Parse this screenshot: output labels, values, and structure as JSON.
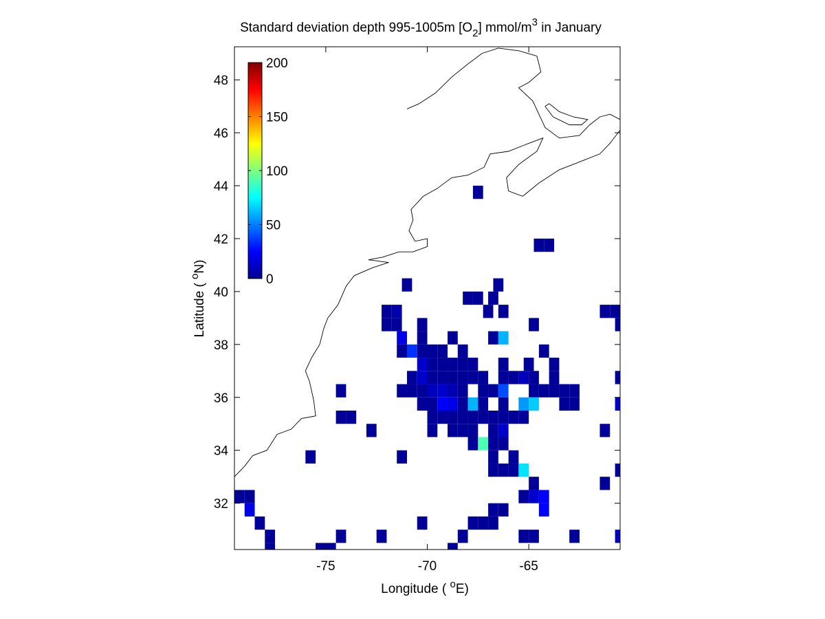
{
  "chart_data": {
    "type": "heatmap",
    "title": {
      "prefix": "Standard deviation depth 995-1005m [O",
      "sub": "2",
      "mid": "] mmol/m",
      "sup": "3",
      "suffix": " in January"
    },
    "xlabel": {
      "prefix": "Longitude ( ",
      "sup": "o",
      "suffix": "E)"
    },
    "ylabel": {
      "prefix": "Latitude ( ",
      "sup": "o",
      "suffix": "N)"
    },
    "xlim": [
      -79.5,
      -60.5
    ],
    "ylim": [
      30.25,
      49.25
    ],
    "xticks": [
      -75,
      -70,
      -65
    ],
    "yticks": [
      32,
      34,
      36,
      38,
      40,
      42,
      44,
      46,
      48
    ],
    "grid": false,
    "colorbar": {
      "min": 0,
      "max": 200,
      "ticks": [
        0,
        50,
        100,
        150,
        200
      ],
      "colormap": "jet",
      "placement": "top-left"
    },
    "cell_size_deg": 0.5,
    "cells": [
      [
        -67.5,
        43.75,
        5
      ],
      [
        -64.5,
        41.75,
        5
      ],
      [
        -64,
        41.75,
        5
      ],
      [
        -71,
        40.25,
        5
      ],
      [
        -66.5,
        40.25,
        5
      ],
      [
        -68,
        39.75,
        5
      ],
      [
        -67.5,
        39.75,
        5
      ],
      [
        -66.75,
        39.75,
        5
      ],
      [
        -72,
        39.25,
        5
      ],
      [
        -71.5,
        39.25,
        8
      ],
      [
        -67,
        39.25,
        5
      ],
      [
        -66.25,
        39.25,
        5
      ],
      [
        -61.25,
        39.25,
        5
      ],
      [
        -60.75,
        39.25,
        5
      ],
      [
        -72,
        38.75,
        5
      ],
      [
        -71.5,
        38.75,
        5
      ],
      [
        -70.25,
        38.75,
        5
      ],
      [
        -64.75,
        38.75,
        5
      ],
      [
        -60.5,
        38.75,
        5
      ],
      [
        -71.25,
        38.25,
        20
      ],
      [
        -70.25,
        38.25,
        5
      ],
      [
        -68.75,
        38.25,
        5
      ],
      [
        -66.75,
        38.25,
        5
      ],
      [
        -66.25,
        38.25,
        60
      ],
      [
        -71.25,
        37.75,
        5
      ],
      [
        -70.75,
        37.75,
        35
      ],
      [
        -70.25,
        37.75,
        5
      ],
      [
        -69.75,
        37.75,
        5
      ],
      [
        -69.25,
        37.75,
        5
      ],
      [
        -68.25,
        37.75,
        5
      ],
      [
        -64.25,
        37.75,
        5
      ],
      [
        -70.25,
        37.25,
        15
      ],
      [
        -69.75,
        37.25,
        5
      ],
      [
        -69.25,
        37.25,
        5
      ],
      [
        -68.75,
        37.25,
        5
      ],
      [
        -68.25,
        37.25,
        5
      ],
      [
        -67.75,
        37.25,
        5
      ],
      [
        -66.25,
        37.25,
        5
      ],
      [
        -65,
        37.25,
        5
      ],
      [
        -63.75,
        37.25,
        5
      ],
      [
        -70.75,
        36.75,
        5
      ],
      [
        -70.25,
        36.75,
        15
      ],
      [
        -69.75,
        36.75,
        5
      ],
      [
        -69.25,
        36.75,
        5
      ],
      [
        -68.75,
        36.75,
        5
      ],
      [
        -68.25,
        36.75,
        5
      ],
      [
        -67.75,
        36.75,
        5
      ],
      [
        -67.25,
        36.75,
        5
      ],
      [
        -66.25,
        36.75,
        5
      ],
      [
        -65.75,
        36.75,
        5
      ],
      [
        -65.25,
        36.75,
        12
      ],
      [
        -64.75,
        36.75,
        5
      ],
      [
        -63.75,
        36.75,
        5
      ],
      [
        -60.5,
        36.75,
        5
      ],
      [
        -74.25,
        36.25,
        5
      ],
      [
        -71.25,
        36.25,
        5
      ],
      [
        -70.75,
        36.25,
        5
      ],
      [
        -70.25,
        36.25,
        5
      ],
      [
        -69.75,
        36.25,
        12
      ],
      [
        -69.25,
        36.25,
        15
      ],
      [
        -68.75,
        36.25,
        10
      ],
      [
        -68.25,
        36.25,
        5
      ],
      [
        -67.25,
        36.25,
        5
      ],
      [
        -66.75,
        36.25,
        5
      ],
      [
        -66.25,
        36.25,
        40
      ],
      [
        -64.75,
        36.25,
        5
      ],
      [
        -64.25,
        36.25,
        5
      ],
      [
        -63.75,
        36.25,
        5
      ],
      [
        -63.25,
        36.25,
        5
      ],
      [
        -62.75,
        36.25,
        5
      ],
      [
        -70.25,
        35.75,
        5
      ],
      [
        -69.75,
        35.75,
        5
      ],
      [
        -69.25,
        35.75,
        25
      ],
      [
        -68.75,
        35.75,
        20
      ],
      [
        -68.25,
        35.75,
        5
      ],
      [
        -67.75,
        35.75,
        60
      ],
      [
        -67.25,
        35.75,
        5
      ],
      [
        -66.25,
        35.75,
        5
      ],
      [
        -65.25,
        35.75,
        55
      ],
      [
        -64.75,
        35.75,
        65
      ],
      [
        -63.25,
        35.75,
        5
      ],
      [
        -62.75,
        35.75,
        5
      ],
      [
        -60.5,
        35.75,
        15
      ],
      [
        -74.25,
        35.25,
        5
      ],
      [
        -73.75,
        35.25,
        5
      ],
      [
        -69.75,
        35.25,
        5
      ],
      [
        -69.25,
        35.25,
        5
      ],
      [
        -68.75,
        35.25,
        5
      ],
      [
        -68.25,
        35.25,
        5
      ],
      [
        -67.75,
        35.25,
        5
      ],
      [
        -67.25,
        35.25,
        5
      ],
      [
        -66.75,
        35.25,
        5
      ],
      [
        -66.25,
        35.25,
        5
      ],
      [
        -65.75,
        35.25,
        5
      ],
      [
        -65.25,
        35.25,
        5
      ],
      [
        -72.75,
        34.75,
        5
      ],
      [
        -69.75,
        34.75,
        5
      ],
      [
        -68.75,
        34.75,
        5
      ],
      [
        -68.25,
        34.75,
        5
      ],
      [
        -67.75,
        34.75,
        5
      ],
      [
        -66.75,
        34.75,
        5
      ],
      [
        -66.25,
        34.75,
        15
      ],
      [
        -61.25,
        34.75,
        5
      ],
      [
        -67.75,
        34.25,
        5
      ],
      [
        -67.25,
        34.25,
        90
      ],
      [
        -66.75,
        34.25,
        5
      ],
      [
        -66.25,
        34.25,
        5
      ],
      [
        -75.75,
        33.75,
        5
      ],
      [
        -71.25,
        33.75,
        5
      ],
      [
        -66.75,
        33.75,
        5
      ],
      [
        -65.75,
        33.75,
        5
      ],
      [
        -66.75,
        33.25,
        5
      ],
      [
        -66.25,
        33.25,
        5
      ],
      [
        -65.75,
        33.25,
        5
      ],
      [
        -65.25,
        33.25,
        70
      ],
      [
        -60.5,
        33.25,
        5
      ],
      [
        -64.75,
        32.75,
        5
      ],
      [
        -61.25,
        32.75,
        5
      ],
      [
        -79.25,
        32.25,
        5
      ],
      [
        -78.75,
        32.25,
        5
      ],
      [
        -65.25,
        32.25,
        5
      ],
      [
        -64.75,
        32.25,
        15
      ],
      [
        -64.25,
        32.25,
        25
      ],
      [
        -78.75,
        31.75,
        20
      ],
      [
        -66.75,
        31.75,
        5
      ],
      [
        -66.25,
        31.75,
        5
      ],
      [
        -64.25,
        31.75,
        25
      ],
      [
        -78.25,
        31.25,
        5
      ],
      [
        -70.25,
        31.25,
        5
      ],
      [
        -67.75,
        31.25,
        5
      ],
      [
        -67.25,
        31.25,
        5
      ],
      [
        -66.75,
        31.25,
        5
      ],
      [
        -77.75,
        30.75,
        5
      ],
      [
        -74.25,
        30.75,
        5
      ],
      [
        -72.25,
        30.75,
        5
      ],
      [
        -68.25,
        30.75,
        5
      ],
      [
        -65.25,
        30.75,
        5
      ],
      [
        -64.75,
        30.75,
        5
      ],
      [
        -62.75,
        30.75,
        5
      ],
      [
        -60.5,
        30.75,
        12
      ],
      [
        -77.75,
        30.25,
        5
      ],
      [
        -75.25,
        30.25,
        5
      ],
      [
        -74.75,
        30.25,
        5
      ],
      [
        -68.75,
        30.25,
        5
      ]
    ],
    "coastlines": [
      [
        [
          -79.5,
          33.0
        ],
        [
          -79.0,
          33.4
        ],
        [
          -78.6,
          33.8
        ],
        [
          -77.9,
          34.0
        ],
        [
          -77.4,
          34.6
        ],
        [
          -76.7,
          34.8
        ],
        [
          -76.2,
          35.2
        ],
        [
          -75.5,
          35.3
        ],
        [
          -75.6,
          35.9
        ],
        [
          -75.8,
          36.6
        ],
        [
          -76.0,
          37.0
        ],
        [
          -75.7,
          37.5
        ],
        [
          -75.3,
          38.0
        ],
        [
          -75.1,
          38.6
        ],
        [
          -74.9,
          39.0
        ],
        [
          -74.4,
          39.5
        ],
        [
          -74.0,
          40.2
        ],
        [
          -73.6,
          40.6
        ],
        [
          -72.7,
          40.9
        ],
        [
          -71.9,
          41.1
        ],
        [
          -72.9,
          41.2
        ],
        [
          -72.2,
          41.3
        ],
        [
          -71.4,
          41.5
        ],
        [
          -70.7,
          41.5
        ],
        [
          -70.0,
          41.7
        ],
        [
          -70.0,
          42.0
        ],
        [
          -70.6,
          41.9
        ],
        [
          -70.9,
          42.3
        ],
        [
          -70.7,
          42.7
        ],
        [
          -70.8,
          43.1
        ],
        [
          -70.2,
          43.6
        ],
        [
          -69.5,
          43.9
        ],
        [
          -68.8,
          44.3
        ],
        [
          -68.0,
          44.4
        ],
        [
          -67.2,
          44.7
        ],
        [
          -66.9,
          45.2
        ],
        [
          -66.0,
          45.3
        ],
        [
          -65.0,
          45.6
        ],
        [
          -64.3,
          45.8
        ],
        [
          -64.6,
          45.3
        ],
        [
          -65.5,
          44.8
        ],
        [
          -66.1,
          44.3
        ],
        [
          -66.0,
          43.8
        ],
        [
          -65.3,
          43.6
        ],
        [
          -64.5,
          44.1
        ],
        [
          -63.5,
          44.6
        ],
        [
          -62.5,
          44.9
        ],
        [
          -61.5,
          45.2
        ],
        [
          -61.0,
          45.6
        ],
        [
          -60.7,
          45.9
        ],
        [
          -60.5,
          46.1
        ]
      ],
      [
        [
          -60.5,
          46.5
        ],
        [
          -61.0,
          46.7
        ],
        [
          -61.5,
          46.6
        ],
        [
          -62.0,
          46.3
        ],
        [
          -62.5,
          45.9
        ],
        [
          -63.5,
          45.8
        ],
        [
          -64.2,
          46.2
        ],
        [
          -64.5,
          46.7
        ],
        [
          -64.8,
          47.2
        ],
        [
          -65.5,
          47.7
        ],
        [
          -65.0,
          47.9
        ],
        [
          -64.4,
          48.3
        ],
        [
          -64.6,
          48.9
        ],
        [
          -65.5,
          49.1
        ],
        [
          -66.5,
          49.2
        ],
        [
          -67.3,
          49.0
        ],
        [
          -68.0,
          48.6
        ],
        [
          -68.8,
          48.1
        ],
        [
          -69.6,
          47.5
        ],
        [
          -70.4,
          47.1
        ],
        [
          -71.0,
          46.9
        ]
      ],
      [
        [
          -64.2,
          47.0
        ],
        [
          -63.8,
          46.6
        ],
        [
          -63.0,
          46.3
        ],
        [
          -62.4,
          46.3
        ],
        [
          -62.1,
          46.5
        ],
        [
          -62.8,
          46.6
        ],
        [
          -63.5,
          46.8
        ],
        [
          -64.0,
          47.1
        ],
        [
          -64.2,
          47.0
        ]
      ],
      [
        [
          -60.5,
          38.7
        ],
        [
          -60.5,
          38.7
        ]
      ]
    ]
  }
}
